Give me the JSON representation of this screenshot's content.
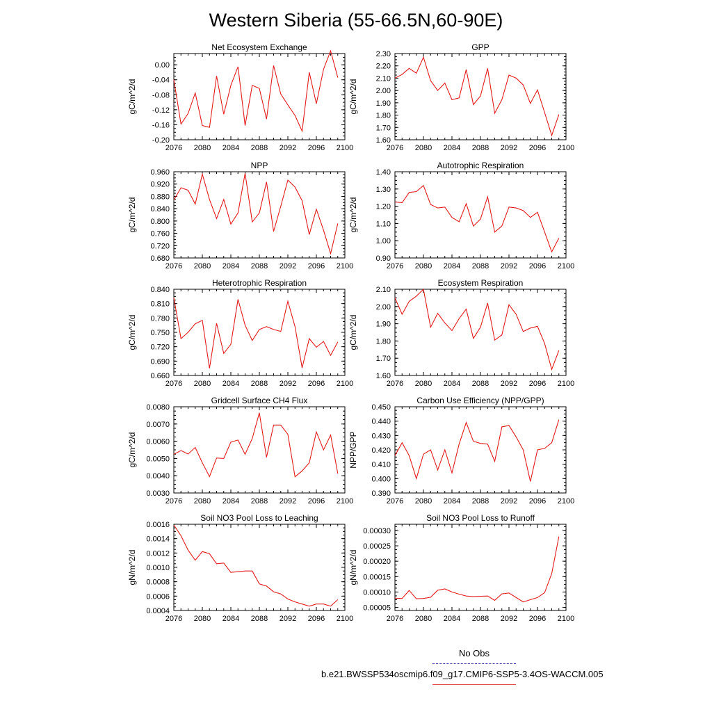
{
  "figure": {
    "title": "Western Siberia (55-66.5N,60-90E)",
    "legend": [
      {
        "label": "No Obs",
        "color": "#3a3aaa",
        "style": "dashed"
      },
      {
        "label": "b.e21.BWSSP534oscmip6.f09_g17.CMIP6-SSP5-3.4OS-WACCM.005",
        "color": "#e05050",
        "style": "solid"
      }
    ]
  },
  "chart_data": [
    {
      "type": "line",
      "title": "Net Ecosystem Exchange",
      "ylabel": "gC/m^2/d",
      "xlim": [
        2076,
        2100
      ],
      "ylim": [
        -0.2,
        0.03
      ],
      "xticks": [
        "2076",
        "2080",
        "2084",
        "2088",
        "2092",
        "2096",
        "2100"
      ],
      "yticks": [
        "-0.20",
        "-0.16",
        "-0.12",
        "-0.08",
        "-0.04",
        "0.00"
      ],
      "x": [
        2076,
        2077,
        2078,
        2079,
        2080,
        2081,
        2082,
        2083,
        2084,
        2085,
        2086,
        2087,
        2088,
        2089,
        2090,
        2091,
        2092,
        2093,
        2094,
        2095,
        2096,
        2097,
        2098,
        2099
      ],
      "series": [
        {
          "color": "#e41a1c",
          "values": [
            -0.04,
            -0.158,
            -0.13,
            -0.075,
            -0.162,
            -0.167,
            -0.03,
            -0.132,
            -0.055,
            -0.005,
            -0.162,
            -0.055,
            -0.063,
            -0.145,
            -0.002,
            -0.078,
            -0.107,
            -0.135,
            -0.177,
            -0.02,
            -0.104,
            -0.012,
            0.037,
            -0.034
          ]
        }
      ]
    },
    {
      "type": "line",
      "title": "GPP",
      "ylabel": "gC/m^2/d",
      "xlim": [
        2076,
        2100
      ],
      "ylim": [
        1.6,
        2.3
      ],
      "xticks": [
        "2076",
        "2080",
        "2084",
        "2088",
        "2092",
        "2096",
        "2100"
      ],
      "yticks": [
        "1.60",
        "1.70",
        "1.80",
        "1.90",
        "2.00",
        "2.10",
        "2.20",
        "2.30"
      ],
      "x": [
        2076,
        2077,
        2078,
        2079,
        2080,
        2081,
        2082,
        2083,
        2084,
        2085,
        2086,
        2087,
        2088,
        2089,
        2090,
        2091,
        2092,
        2093,
        2094,
        2095,
        2096,
        2097,
        2098,
        2099
      ],
      "series": [
        {
          "color": "#e41a1c",
          "values": [
            2.1,
            2.13,
            2.18,
            2.14,
            2.27,
            2.08,
            2.0,
            2.06,
            1.925,
            1.94,
            2.17,
            1.885,
            1.955,
            2.18,
            1.815,
            1.925,
            2.125,
            2.1,
            2.045,
            1.895,
            2.005,
            1.82,
            1.635,
            1.805
          ]
        }
      ]
    },
    {
      "type": "line",
      "title": "NPP",
      "ylabel": "gC/m^2/d",
      "xlim": [
        2076,
        2100
      ],
      "ylim": [
        0.68,
        0.96
      ],
      "xticks": [
        "2076",
        "2080",
        "2084",
        "2088",
        "2092",
        "2096",
        "2100"
      ],
      "yticks": [
        "0.680",
        "0.720",
        "0.760",
        "0.800",
        "0.840",
        "0.880",
        "0.920",
        "0.960"
      ],
      "x": [
        2076,
        2077,
        2078,
        2079,
        2080,
        2081,
        2082,
        2083,
        2084,
        2085,
        2086,
        2087,
        2088,
        2089,
        2090,
        2091,
        2092,
        2093,
        2094,
        2095,
        2096,
        2097,
        2098,
        2099
      ],
      "series": [
        {
          "color": "#e41a1c",
          "values": [
            0.868,
            0.908,
            0.9,
            0.855,
            0.952,
            0.87,
            0.808,
            0.87,
            0.79,
            0.826,
            0.955,
            0.797,
            0.826,
            0.927,
            0.766,
            0.848,
            0.933,
            0.91,
            0.866,
            0.756,
            0.838,
            0.77,
            0.694,
            0.792
          ]
        }
      ]
    },
    {
      "type": "line",
      "title": "Autotrophic Respiration",
      "ylabel": "gC/m^2/d",
      "xlim": [
        2076,
        2100
      ],
      "ylim": [
        0.9,
        1.4
      ],
      "xticks": [
        "2076",
        "2080",
        "2084",
        "2088",
        "2092",
        "2096",
        "2100"
      ],
      "yticks": [
        "0.90",
        "1.00",
        "1.10",
        "1.20",
        "1.30",
        "1.40"
      ],
      "x": [
        2076,
        2077,
        2078,
        2079,
        2080,
        2081,
        2082,
        2083,
        2084,
        2085,
        2086,
        2087,
        2088,
        2089,
        2090,
        2091,
        2092,
        2093,
        2094,
        2095,
        2096,
        2097,
        2098,
        2099
      ],
      "series": [
        {
          "color": "#e41a1c",
          "values": [
            1.225,
            1.22,
            1.28,
            1.285,
            1.32,
            1.21,
            1.19,
            1.195,
            1.135,
            1.11,
            1.215,
            1.085,
            1.125,
            1.255,
            1.05,
            1.085,
            1.195,
            1.19,
            1.175,
            1.135,
            1.165,
            1.05,
            0.935,
            1.015
          ]
        }
      ]
    },
    {
      "type": "line",
      "title": "Heterotrophic Respiration",
      "ylabel": "gC/m^2/d",
      "xlim": [
        2076,
        2100
      ],
      "ylim": [
        0.66,
        0.84
      ],
      "xticks": [
        "2076",
        "2080",
        "2084",
        "2088",
        "2092",
        "2096",
        "2100"
      ],
      "yticks": [
        "0.660",
        "0.690",
        "0.720",
        "0.750",
        "0.780",
        "0.810",
        "0.840"
      ],
      "x": [
        2076,
        2077,
        2078,
        2079,
        2080,
        2081,
        2082,
        2083,
        2084,
        2085,
        2086,
        2087,
        2088,
        2089,
        2090,
        2091,
        2092,
        2093,
        2094,
        2095,
        2096,
        2097,
        2098,
        2099
      ],
      "series": [
        {
          "color": "#e41a1c",
          "values": [
            0.822,
            0.737,
            0.75,
            0.768,
            0.775,
            0.675,
            0.769,
            0.706,
            0.725,
            0.819,
            0.765,
            0.733,
            0.756,
            0.762,
            0.756,
            0.752,
            0.815,
            0.762,
            0.676,
            0.737,
            0.719,
            0.731,
            0.702,
            0.73
          ]
        }
      ]
    },
    {
      "type": "line",
      "title": "Ecosystem Respiration",
      "ylabel": "gC/m^2/d",
      "xlim": [
        2076,
        2100
      ],
      "ylim": [
        1.6,
        2.1
      ],
      "xticks": [
        "2076",
        "2080",
        "2084",
        "2088",
        "2092",
        "2096",
        "2100"
      ],
      "yticks": [
        "1.60",
        "1.70",
        "1.80",
        "1.90",
        "2.00",
        "2.10"
      ],
      "x": [
        2076,
        2077,
        2078,
        2079,
        2080,
        2081,
        2082,
        2083,
        2084,
        2085,
        2086,
        2087,
        2088,
        2089,
        2090,
        2091,
        2092,
        2093,
        2094,
        2095,
        2096,
        2097,
        2098,
        2099
      ],
      "series": [
        {
          "color": "#e41a1c",
          "values": [
            2.05,
            1.955,
            2.03,
            2.06,
            2.1,
            1.88,
            1.96,
            1.905,
            1.86,
            1.93,
            1.985,
            1.815,
            1.88,
            2.02,
            1.805,
            1.835,
            2.01,
            1.955,
            1.855,
            1.875,
            1.885,
            1.785,
            1.635,
            1.745
          ]
        }
      ]
    },
    {
      "type": "line",
      "title": "Gridcell Surface CH4 Flux",
      "ylabel": "gC/m^2/d",
      "xlim": [
        2076,
        2100
      ],
      "ylim": [
        0.003,
        0.008
      ],
      "xticks": [
        "2076",
        "2080",
        "2084",
        "2088",
        "2092",
        "2096",
        "2100"
      ],
      "yticks": [
        "0.0030",
        "0.0040",
        "0.0050",
        "0.0060",
        "0.0070",
        "0.0080"
      ],
      "x": [
        2076,
        2077,
        2078,
        2079,
        2080,
        2081,
        2082,
        2083,
        2084,
        2085,
        2086,
        2087,
        2088,
        2089,
        2090,
        2091,
        2092,
        2093,
        2094,
        2095,
        2096,
        2097,
        2098,
        2099
      ],
      "series": [
        {
          "color": "#e41a1c",
          "values": [
            0.00524,
            0.00546,
            0.00526,
            0.00564,
            0.00475,
            0.00395,
            0.00503,
            0.005,
            0.00595,
            0.00607,
            0.00524,
            0.00616,
            0.00765,
            0.00507,
            0.00694,
            0.00694,
            0.0064,
            0.00394,
            0.00428,
            0.00475,
            0.00654,
            0.0055,
            0.00636,
            0.00413
          ]
        }
      ]
    },
    {
      "type": "line",
      "title": "Carbon Use Efficiency (NPP/GPP)",
      "ylabel": "NPP/GPP",
      "xlim": [
        2076,
        2100
      ],
      "ylim": [
        0.39,
        0.45
      ],
      "xticks": [
        "2076",
        "2080",
        "2084",
        "2088",
        "2092",
        "2096",
        "2100"
      ],
      "yticks": [
        "0.390",
        "0.400",
        "0.410",
        "0.420",
        "0.430",
        "0.440",
        "0.450"
      ],
      "x": [
        2076,
        2077,
        2078,
        2079,
        2080,
        2081,
        2082,
        2083,
        2084,
        2085,
        2086,
        2087,
        2088,
        2089,
        2090,
        2091,
        2092,
        2093,
        2094,
        2095,
        2096,
        2097,
        2098,
        2099
      ],
      "series": [
        {
          "color": "#e41a1c",
          "values": [
            0.416,
            0.425,
            0.416,
            0.4,
            0.417,
            0.42,
            0.406,
            0.42,
            0.404,
            0.424,
            0.439,
            0.426,
            0.4245,
            0.424,
            0.412,
            0.436,
            0.437,
            0.429,
            0.42,
            0.398,
            0.42,
            0.421,
            0.425,
            0.441
          ]
        }
      ]
    },
    {
      "type": "line",
      "title": "Soil NO3 Pool Loss to Leaching",
      "ylabel": "gN/m^2/d",
      "xlim": [
        2076,
        2100
      ],
      "ylim": [
        0.0004,
        0.0016
      ],
      "xticks": [
        "2076",
        "2080",
        "2084",
        "2088",
        "2092",
        "2096",
        "2100"
      ],
      "yticks": [
        "0.0004",
        "0.0006",
        "0.0008",
        "0.0010",
        "0.0012",
        "0.0014",
        "0.0016"
      ],
      "x": [
        2076,
        2077,
        2078,
        2079,
        2080,
        2081,
        2082,
        2083,
        2084,
        2085,
        2086,
        2087,
        2088,
        2089,
        2090,
        2091,
        2092,
        2093,
        2094,
        2095,
        2096,
        2097,
        2098,
        2099
      ],
      "series": [
        {
          "color": "#e41a1c",
          "values": [
            0.00159,
            0.00144,
            0.00124,
            0.0011,
            0.00122,
            0.00119,
            0.00105,
            0.00106,
            0.00093,
            0.00094,
            0.00095,
            0.00095,
            0.00077,
            0.00074,
            0.00066,
            0.00063,
            0.00056,
            0.00052,
            0.00049,
            0.00046,
            0.00049,
            0.00049,
            0.00046,
            0.00055
          ]
        }
      ]
    },
    {
      "type": "line",
      "title": "Soil NO3 Pool Loss to Runoff",
      "ylabel": "gN/m^2/d",
      "xlim": [
        2076,
        2100
      ],
      "ylim": [
        4e-05,
        0.00032
      ],
      "xticks": [
        "2076",
        "2080",
        "2084",
        "2088",
        "2092",
        "2096",
        "2100"
      ],
      "yticks": [
        "0.00005",
        "0.00010",
        "0.00015",
        "0.00020",
        "0.00025",
        "0.00030"
      ],
      "x": [
        2076,
        2077,
        2078,
        2079,
        2080,
        2081,
        2082,
        2083,
        2084,
        2085,
        2086,
        2087,
        2088,
        2089,
        2090,
        2091,
        2092,
        2093,
        2094,
        2095,
        2096,
        2097,
        2098,
        2099
      ],
      "series": [
        {
          "color": "#e41a1c",
          "values": [
            8e-05,
            7.9e-05,
            0.000105,
            7.8e-05,
            7.9e-05,
            8.3e-05,
            0.000106,
            0.00011,
            0.0001,
            9.3e-05,
            8.7e-05,
            8.5e-05,
            8.6e-05,
            8.7e-05,
            7.3e-05,
            9.4e-05,
            9.7e-05,
            8.2e-05,
            6.8e-05,
            7.5e-05,
            8.2e-05,
            9.8e-05,
            0.00016,
            0.00028
          ]
        }
      ]
    }
  ]
}
